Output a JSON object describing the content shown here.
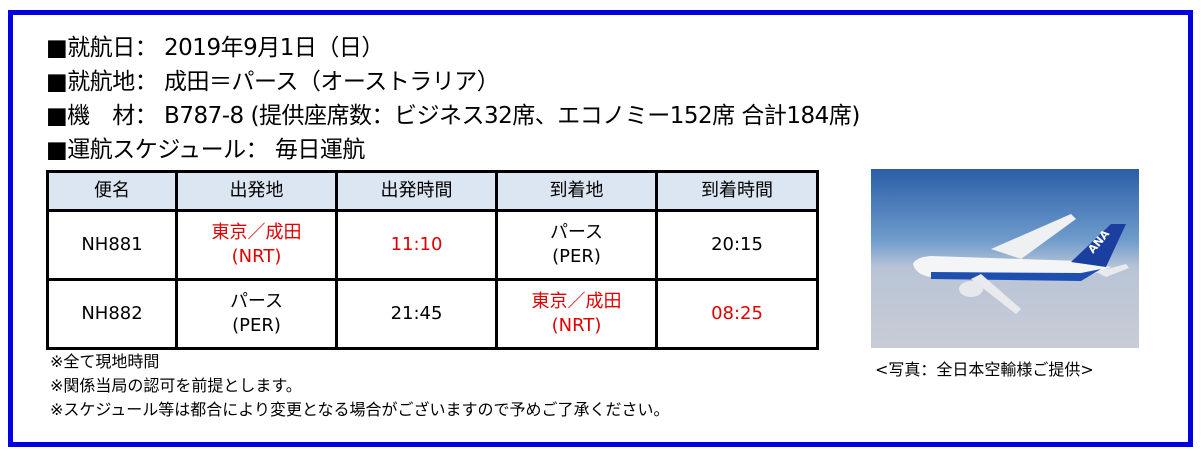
{
  "info": {
    "line1": "■就航日： 2019年9月1日（日）",
    "line2": "■就航地： 成田＝パース（オーストラリア）",
    "line3": "■機　材： B787-8 (提供座席数：ビジネス32席、エコノミー152席 合計184席)",
    "line4": "■運航スケジュール： 毎日運航"
  },
  "table": {
    "headers": [
      "便名",
      "出発地",
      "出発時間",
      "到着地",
      "到着時間"
    ],
    "rows": [
      {
        "flight": "NH881",
        "from": "東京／成田",
        "from_code": "(NRT)",
        "dep": "11:10",
        "to": "パース",
        "to_code": "(PER)",
        "arr": "20:15"
      },
      {
        "flight": "NH882",
        "from": "パース",
        "from_code": "(PER)",
        "dep": "21:45",
        "to": "東京／成田",
        "to_code": "(NRT)",
        "arr": "08:25"
      }
    ]
  },
  "notes": [
    "※全て現地時間",
    "※関係当局の認可を前提とします。",
    "※スケジュール等は都合により変更となる場合がございますので予めご了承ください。"
  ],
  "photo": {
    "caption": "<写真：全日本空輸様ご提供>",
    "tail_logo": "ANA"
  },
  "colors": {
    "frame": "#0000e0",
    "highlight": "#e00000",
    "header_bg": "#dce6f2"
  }
}
